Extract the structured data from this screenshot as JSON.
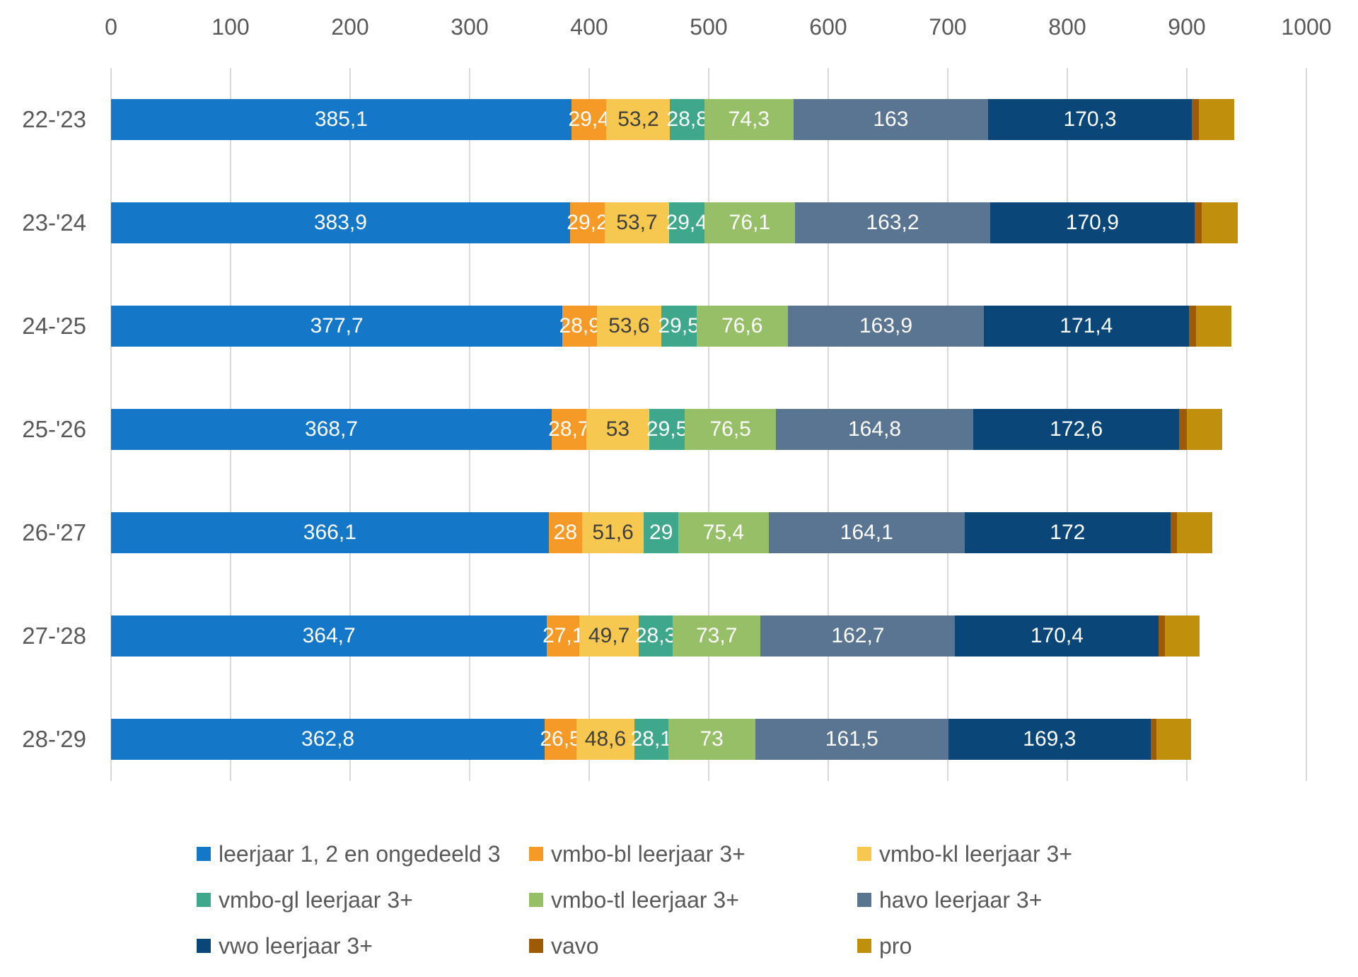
{
  "chart_data": {
    "type": "bar",
    "orientation": "horizontal",
    "stacked": true,
    "title": "",
    "xlabel": "",
    "ylabel": "",
    "xlim": [
      0,
      1000
    ],
    "x_ticks": [
      "0",
      "100",
      "200",
      "300",
      "400",
      "500",
      "600",
      "700",
      "800",
      "900",
      "1000"
    ],
    "grid": true,
    "legend_position": "bottom",
    "categories": [
      "22-'23",
      "23-'24",
      "24-'25",
      "25-'26",
      "26-'27",
      "27-'28",
      "28-'29"
    ],
    "series": [
      {
        "name": "leerjaar 1, 2 en ongedeeld 3",
        "color": "#1577C8",
        "label_color": "#FFFFFF",
        "values": [
          385.1,
          383.9,
          377.7,
          368.7,
          366.1,
          364.7,
          362.8
        ],
        "labels": [
          "385,1",
          "383,9",
          "377,7",
          "368,7",
          "366,1",
          "364,7",
          "362,8"
        ]
      },
      {
        "name": "vmbo-bl leerjaar 3+",
        "color": "#F59A27",
        "label_color": "#FFFFFF",
        "values": [
          29.4,
          29.2,
          28.9,
          28.7,
          28,
          27.1,
          26.5
        ],
        "labels": [
          "29,4",
          "29,2",
          "28,9",
          "28,7",
          "28",
          "27,1",
          "26,5"
        ]
      },
      {
        "name": "vmbo-kl leerjaar 3+",
        "color": "#F7C84F",
        "label_color": "#3F3F3F",
        "values": [
          53.2,
          53.7,
          53.6,
          53,
          51.6,
          49.7,
          48.6
        ],
        "labels": [
          "53,2",
          "53,7",
          "53,6",
          "53",
          "51,6",
          "49,7",
          "48,6"
        ]
      },
      {
        "name": "vmbo-gl leerjaar 3+",
        "color": "#3EA78C",
        "label_color": "#FFFFFF",
        "values": [
          28.8,
          29.4,
          29.5,
          29.5,
          29,
          28.3,
          28.1
        ],
        "labels": [
          "28,8",
          "29,4",
          "29,5",
          "29,5",
          "29",
          "28,3",
          "28,1"
        ]
      },
      {
        "name": "vmbo-tl leerjaar 3+",
        "color": "#97BF68",
        "label_color": "#FFFFFF",
        "values": [
          74.3,
          76.1,
          76.6,
          76.5,
          75.4,
          73.7,
          73
        ],
        "labels": [
          "74,3",
          "76,1",
          "76,6",
          "76,5",
          "75,4",
          "73,7",
          "73"
        ]
      },
      {
        "name": "havo leerjaar 3+",
        "color": "#5A7592",
        "label_color": "#FFFFFF",
        "values": [
          163,
          163.2,
          163.9,
          164.8,
          164.1,
          162.7,
          161.5
        ],
        "labels": [
          "163",
          "163,2",
          "163,9",
          "164,8",
          "164,1",
          "162,7",
          "161,5"
        ]
      },
      {
        "name": "vwo leerjaar 3+",
        "color": "#0A4677",
        "label_color": "#FFFFFF",
        "values": [
          170.3,
          170.9,
          171.4,
          172.6,
          172,
          170.4,
          169.3
        ],
        "labels": [
          "170,3",
          "170,9",
          "171,4",
          "172,6",
          "172",
          "170,4",
          "169,3"
        ]
      },
      {
        "name": "vavo",
        "color": "#9D5B08",
        "label_color": "#FFFFFF",
        "values": [
          6,
          6,
          6,
          6,
          5.5,
          5,
          5
        ],
        "labels": [
          "",
          "",
          "",
          "",
          "",
          "",
          ""
        ]
      },
      {
        "name": "pro",
        "color": "#C08F0C",
        "label_color": "#FFFFFF",
        "values": [
          29.5,
          30,
          30,
          30,
          29.5,
          29,
          29
        ],
        "labels": [
          "",
          "",
          "",
          "",
          "",
          "",
          ""
        ]
      }
    ]
  },
  "colors": {
    "axis_text": "#595959",
    "gridline": "#D9D9D9",
    "background": "#FFFFFF"
  }
}
